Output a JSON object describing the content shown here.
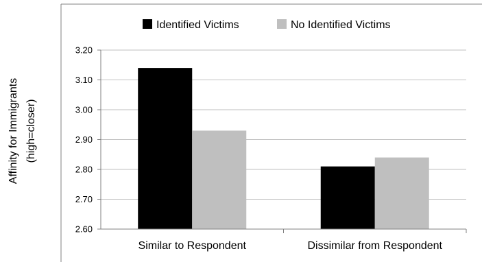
{
  "chart_data": {
    "type": "bar",
    "title": "",
    "xlabel": "",
    "ylabel_lines": [
      "Affinity for Immigrants",
      "(high=closer)"
    ],
    "categories": [
      "Similar to Respondent",
      "Dissimilar from Respondent"
    ],
    "series": [
      {
        "name": "Identified Victims",
        "values": [
          3.14,
          2.81
        ],
        "color": "#000000"
      },
      {
        "name": "No Identified Victims",
        "values": [
          2.93,
          2.84
        ],
        "color": "#bfbfbf"
      }
    ],
    "ylim": [
      2.6,
      3.2
    ],
    "yticks": [
      "2.60",
      "2.70",
      "2.80",
      "2.90",
      "3.00",
      "3.10",
      "3.20"
    ],
    "grid": true,
    "legend_position": "top",
    "colors": {
      "gridline": "#bfbfbf",
      "axis": "#808080",
      "frame": "#808080"
    }
  }
}
